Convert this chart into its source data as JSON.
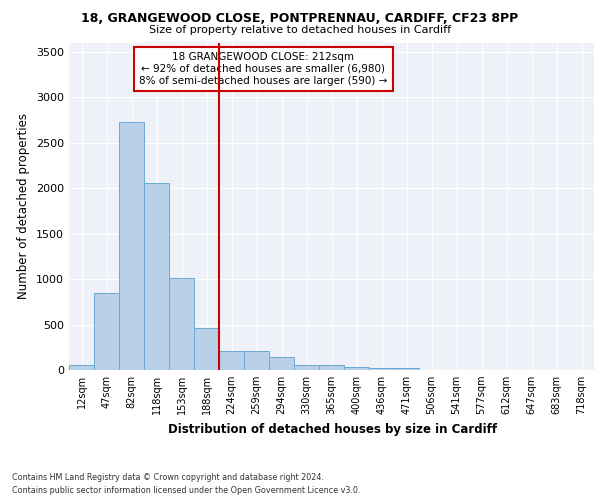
{
  "title_line1": "18, GRANGEWOOD CLOSE, PONTPRENNAU, CARDIFF, CF23 8PP",
  "title_line2": "Size of property relative to detached houses in Cardiff",
  "xlabel": "Distribution of detached houses by size in Cardiff",
  "ylabel": "Number of detached properties",
  "bar_labels": [
    "12sqm",
    "47sqm",
    "82sqm",
    "118sqm",
    "153sqm",
    "188sqm",
    "224sqm",
    "259sqm",
    "294sqm",
    "330sqm",
    "365sqm",
    "400sqm",
    "436sqm",
    "471sqm",
    "506sqm",
    "541sqm",
    "577sqm",
    "612sqm",
    "647sqm",
    "683sqm",
    "718sqm"
  ],
  "bar_values": [
    60,
    850,
    2730,
    2060,
    1010,
    460,
    210,
    210,
    140,
    60,
    55,
    30,
    20,
    20,
    5,
    0,
    0,
    0,
    0,
    0,
    0
  ],
  "bar_color": "#b8d0e8",
  "bar_edge_color": "#6aaad4",
  "annotation_line1": "18 GRANGEWOOD CLOSE: 212sqm",
  "annotation_line2": "← 92% of detached houses are smaller (6,980)",
  "annotation_line3": "8% of semi-detached houses are larger (590) →",
  "vline_x_index": 6,
  "vline_color": "#cc0000",
  "box_color": "#cc0000",
  "ylim": [
    0,
    3600
  ],
  "yticks": [
    0,
    500,
    1000,
    1500,
    2000,
    2500,
    3000,
    3500
  ],
  "footer_line1": "Contains HM Land Registry data © Crown copyright and database right 2024.",
  "footer_line2": "Contains public sector information licensed under the Open Government Licence v3.0.",
  "bg_color": "#eef2f8",
  "grid_color": "#ffffff"
}
